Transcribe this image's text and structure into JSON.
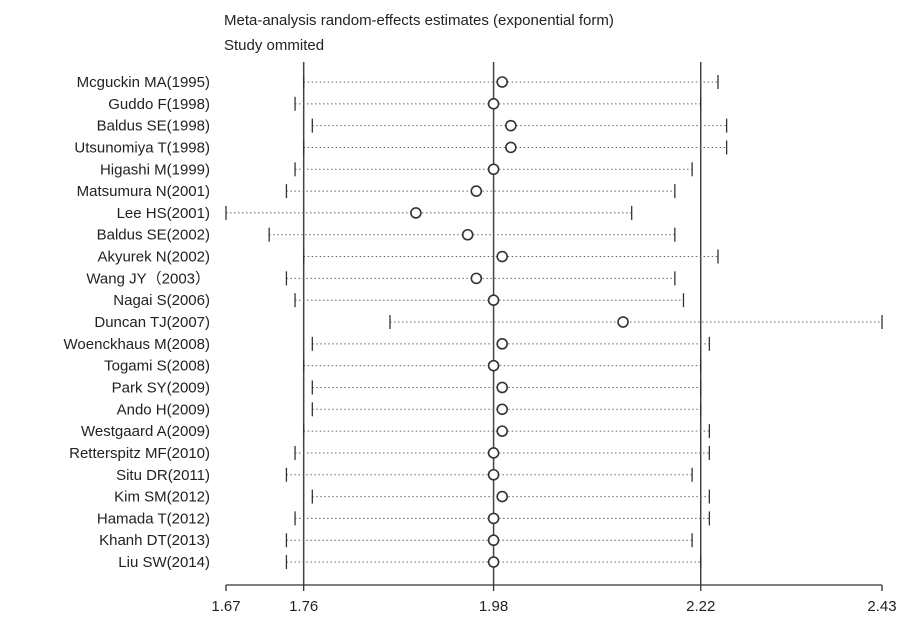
{
  "chart_data": {
    "type": "forest",
    "title": "Meta-analysis random-effects estimates (exponential form)",
    "subtitle": "Study ommited",
    "x_ticks": [
      1.67,
      1.76,
      1.98,
      2.22,
      2.43
    ],
    "x_tick_labels": [
      "1.67",
      "1.76",
      "1.98",
      "2.22",
      "2.43"
    ],
    "xlim": [
      1.67,
      2.43
    ],
    "reference_lines": [
      1.76,
      1.98,
      2.22
    ],
    "studies": [
      {
        "label": "Mcguckin MA(1995)",
        "estimate": 1.99,
        "lower": 1.76,
        "upper": 2.24
      },
      {
        "label": "Guddo F(1998)",
        "estimate": 1.98,
        "lower": 1.75,
        "upper": 2.22
      },
      {
        "label": "Baldus SE(1998)",
        "estimate": 2.0,
        "lower": 1.77,
        "upper": 2.25
      },
      {
        "label": "Utsunomiya T(1998)",
        "estimate": 2.0,
        "lower": 1.76,
        "upper": 2.25
      },
      {
        "label": "Higashi M(1999)",
        "estimate": 1.98,
        "lower": 1.75,
        "upper": 2.21
      },
      {
        "label": "Matsumura N(2001)",
        "estimate": 1.96,
        "lower": 1.74,
        "upper": 2.19
      },
      {
        "label": "Lee HS(2001)",
        "estimate": 1.89,
        "lower": 1.67,
        "upper": 2.14
      },
      {
        "label": "Baldus SE(2002)",
        "estimate": 1.95,
        "lower": 1.72,
        "upper": 2.19
      },
      {
        "label": "Akyurek N(2002)",
        "estimate": 1.99,
        "lower": 1.76,
        "upper": 2.24
      },
      {
        "label": "Wang JY（2003）",
        "estimate": 1.96,
        "lower": 1.74,
        "upper": 2.19
      },
      {
        "label": "Nagai S(2006)",
        "estimate": 1.98,
        "lower": 1.75,
        "upper": 2.2
      },
      {
        "label": "Duncan TJ(2007)",
        "estimate": 2.13,
        "lower": 1.86,
        "upper": 2.43
      },
      {
        "label": "Woenckhaus  M(2008)",
        "estimate": 1.99,
        "lower": 1.77,
        "upper": 2.23
      },
      {
        "label": "Togami S(2008)",
        "estimate": 1.98,
        "lower": 1.76,
        "upper": 2.22
      },
      {
        "label": "Park SY(2009)",
        "estimate": 1.99,
        "lower": 1.77,
        "upper": 2.22
      },
      {
        "label": "Ando H(2009)",
        "estimate": 1.99,
        "lower": 1.77,
        "upper": 2.22
      },
      {
        "label": "Westgaard A(2009)",
        "estimate": 1.99,
        "lower": 1.76,
        "upper": 2.23
      },
      {
        "label": "Retterspitz MF(2010)",
        "estimate": 1.98,
        "lower": 1.75,
        "upper": 2.23
      },
      {
        "label": "Situ DR(2011)",
        "estimate": 1.98,
        "lower": 1.74,
        "upper": 2.21
      },
      {
        "label": "Kim SM(2012)",
        "estimate": 1.99,
        "lower": 1.77,
        "upper": 2.23
      },
      {
        "label": "Hamada T(2012)",
        "estimate": 1.98,
        "lower": 1.75,
        "upper": 2.23
      },
      {
        "label": "Khanh DT(2013)",
        "estimate": 1.98,
        "lower": 1.74,
        "upper": 2.21
      },
      {
        "label": "Liu SW(2014)",
        "estimate": 1.98,
        "lower": 1.74,
        "upper": 2.22
      }
    ]
  }
}
